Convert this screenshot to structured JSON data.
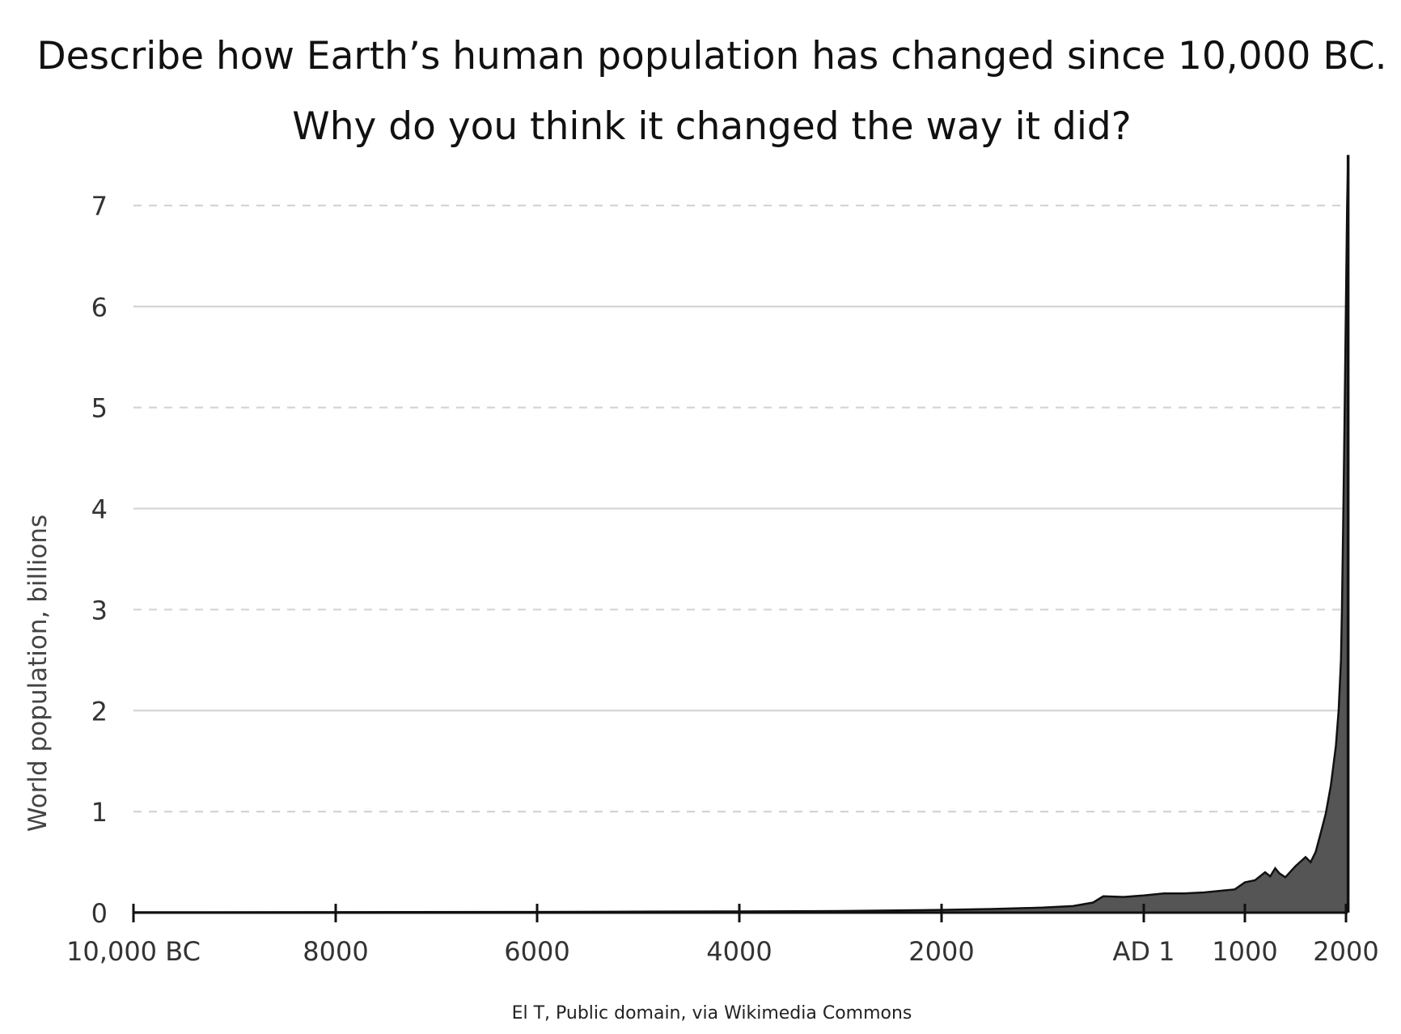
{
  "prompt": {
    "line1": "Describe how Earth’s human population has changed since 10,000 BC.",
    "line2": "Why do you think it changed the way it did?"
  },
  "credit": "El T, Public domain, via Wikimedia Commons",
  "chart_data": {
    "type": "area",
    "title": "",
    "xlabel": "",
    "ylabel": "World population, billions",
    "xlim": [
      -10000,
      2021
    ],
    "ylim": [
      0,
      7.8
    ],
    "grid": true,
    "x_ticks": [
      {
        "value": -10000,
        "label": "10,000 BC"
      },
      {
        "value": -8000,
        "label": "8000"
      },
      {
        "value": -6000,
        "label": "6000"
      },
      {
        "value": -4000,
        "label": "4000"
      },
      {
        "value": -2000,
        "label": "2000"
      },
      {
        "value": 1,
        "label": "AD 1"
      },
      {
        "value": 1000,
        "label": "1000"
      },
      {
        "value": 2000,
        "label": "2000"
      }
    ],
    "y_ticks": [
      {
        "value": 0,
        "label": "0",
        "style": "solid"
      },
      {
        "value": 1,
        "label": "1",
        "style": "dashed"
      },
      {
        "value": 2,
        "label": "2",
        "style": "solid"
      },
      {
        "value": 3,
        "label": "3",
        "style": "dashed"
      },
      {
        "value": 4,
        "label": "4",
        "style": "solid"
      },
      {
        "value": 5,
        "label": "5",
        "style": "dashed"
      },
      {
        "value": 6,
        "label": "6",
        "style": "solid"
      },
      {
        "value": 7,
        "label": "7",
        "style": "dashed"
      }
    ],
    "fill_color": "#555555",
    "line_color": "#111111",
    "grid_color": "#d4d4d4",
    "series": [
      {
        "x": [
          -10000,
          -8000,
          -6000,
          -5000,
          -4000,
          -3000,
          -2000,
          -1500,
          -1000,
          -700,
          -500,
          -400,
          -200,
          1,
          200,
          400,
          600,
          800,
          900,
          1000,
          1100,
          1200,
          1250,
          1300,
          1340,
          1400,
          1500,
          1600,
          1650,
          1700,
          1750,
          1800,
          1850,
          1900,
          1927,
          1950,
          1960,
          1974,
          1987,
          1999,
          2011,
          2021
        ],
        "y": [
          0.004,
          0.005,
          0.007,
          0.01,
          0.012,
          0.016,
          0.027,
          0.036,
          0.05,
          0.065,
          0.1,
          0.162,
          0.155,
          0.17,
          0.19,
          0.19,
          0.2,
          0.22,
          0.23,
          0.3,
          0.32,
          0.4,
          0.36,
          0.44,
          0.39,
          0.35,
          0.46,
          0.55,
          0.5,
          0.6,
          0.79,
          0.98,
          1.26,
          1.65,
          2.0,
          2.5,
          3.0,
          4.0,
          5.0,
          6.0,
          7.0,
          7.5
        ]
      }
    ]
  }
}
